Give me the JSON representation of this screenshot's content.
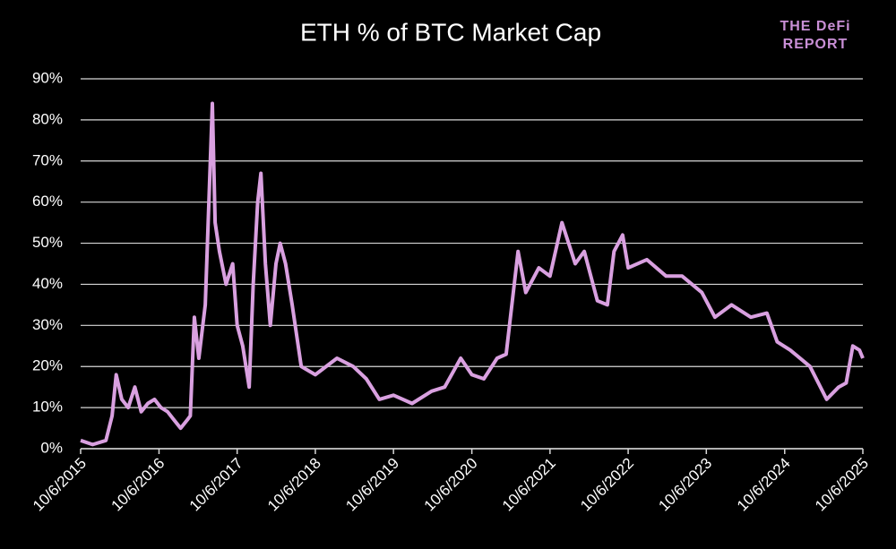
{
  "chart_data": {
    "type": "line",
    "title": "ETH % of BTC Market Cap",
    "logo": [
      "THE DeFi",
      "REPORT"
    ],
    "x": [
      "10/6/2015",
      "12/1/2015",
      "2/1/2016",
      "3/1/2016",
      "3/20/2016",
      "4/15/2016",
      "5/15/2016",
      "6/15/2016",
      "7/15/2016",
      "8/15/2016",
      "9/15/2016",
      "10/15/2016",
      "11/15/2016",
      "12/15/2016",
      "1/15/2017",
      "2/15/2017",
      "3/1/2017",
      "3/20/2017",
      "4/10/2017",
      "5/10/2017",
      "6/12/2017",
      "6/25/2017",
      "7/15/2017",
      "8/15/2017",
      "9/15/2017",
      "10/6/2017",
      "11/1/2017",
      "12/1/2017",
      "12/20/2017",
      "1/10/2018",
      "1/25/2018",
      "2/15/2018",
      "3/10/2018",
      "4/5/2018",
      "4/25/2018",
      "5/20/2018",
      "6/20/2018",
      "8/1/2018",
      "10/6/2018",
      "1/15/2019",
      "4/1/2019",
      "6/1/2019",
      "8/1/2019",
      "10/6/2019",
      "1/1/2020",
      "4/1/2020",
      "6/1/2020",
      "8/15/2020",
      "10/6/2020",
      "12/1/2020",
      "2/1/2021",
      "3/15/2021",
      "5/10/2021",
      "6/15/2021",
      "8/15/2021",
      "10/6/2021",
      "12/1/2021",
      "2/1/2022",
      "3/15/2022",
      "5/15/2022",
      "7/1/2022",
      "8/1/2022",
      "9/10/2022",
      "10/6/2022",
      "1/1/2023",
      "4/1/2023",
      "6/15/2023",
      "9/15/2023",
      "11/15/2023",
      "2/1/2024",
      "5/1/2024",
      "7/15/2024",
      "9/1/2024",
      "11/1/2024",
      "2/1/2025",
      "4/20/2025",
      "6/15/2025",
      "7/20/2025",
      "8/20/2025",
      "9/20/2025",
      "10/6/2025"
    ],
    "series": [
      {
        "name": "ETH % of BTC",
        "color": "#d9a0e0",
        "values": [
          2,
          1,
          2,
          8,
          18,
          12,
          10,
          15,
          9,
          11,
          12,
          10,
          9,
          7,
          5,
          7,
          8,
          32,
          22,
          35,
          84,
          55,
          48,
          40,
          45,
          30,
          25,
          15,
          40,
          60,
          67,
          45,
          30,
          45,
          50,
          45,
          35,
          20,
          18,
          22,
          20,
          17,
          12,
          13,
          11,
          14,
          15,
          22,
          18,
          17,
          22,
          23,
          48,
          38,
          44,
          42,
          55,
          45,
          48,
          36,
          35,
          48,
          52,
          44,
          46,
          42,
          42,
          38,
          32,
          35,
          32,
          33,
          26,
          24,
          20,
          12,
          15,
          16,
          25,
          24,
          22
        ]
      }
    ],
    "xlim": [
      "10/6/2015",
      "10/6/2025"
    ],
    "xticks": [
      "10/6/2015",
      "10/6/2016",
      "10/6/2017",
      "10/6/2018",
      "10/6/2019",
      "10/6/2020",
      "10/6/2021",
      "10/6/2022",
      "10/6/2023",
      "10/6/2024",
      "10/6/2025"
    ],
    "ylim": [
      0,
      90
    ],
    "yticks": [
      {
        "value": 0,
        "label": "0%"
      },
      {
        "value": 10,
        "label": "10%"
      },
      {
        "value": 20,
        "label": "20%"
      },
      {
        "value": 30,
        "label": "30%"
      },
      {
        "value": 40,
        "label": "40%"
      },
      {
        "value": 50,
        "label": "50%"
      },
      {
        "value": 60,
        "label": "60%"
      },
      {
        "value": 70,
        "label": "70%"
      },
      {
        "value": 80,
        "label": "80%"
      },
      {
        "value": 90,
        "label": "90%"
      }
    ],
    "grid": true
  }
}
